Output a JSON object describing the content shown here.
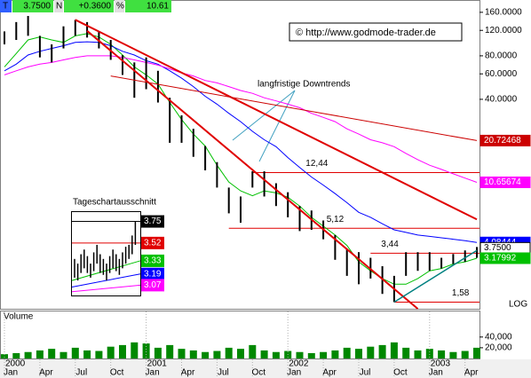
{
  "quote": {
    "symbol": "T",
    "n": "N",
    "change": "+0.3600",
    "pct_sign": "%",
    "pct": "10.61"
  },
  "copyright": "© http://www.godmode-trader.de",
  "chart_data": {
    "type": "ohlc",
    "log": true,
    "axis_note": "LOG",
    "annotation": "langfristige Downtrends",
    "x": [
      "2000-01",
      "2000-02",
      "2000-03",
      "2000-04",
      "2000-05",
      "2000-06",
      "2000-07",
      "2000-08",
      "2000-09",
      "2000-10",
      "2000-11",
      "2000-12",
      "2001-01",
      "2001-02",
      "2001-03",
      "2001-04",
      "2001-05",
      "2001-06",
      "2001-07",
      "2001-08",
      "2001-09",
      "2001-10",
      "2001-11",
      "2001-12",
      "2002-01",
      "2002-02",
      "2002-03",
      "2002-04",
      "2002-05",
      "2002-06",
      "2002-07",
      "2002-08",
      "2002-09",
      "2002-10",
      "2002-11",
      "2002-12",
      "2003-01",
      "2003-02",
      "2003-03",
      "2003-04",
      "2003-05"
    ],
    "high": [
      118,
      137,
      151,
      110,
      96,
      128,
      142,
      137,
      118,
      103,
      81,
      72,
      78,
      63,
      41,
      31,
      25,
      19,
      14.7,
      9.8,
      8.5,
      12.7,
      12.7,
      10.5,
      9.1,
      7.3,
      6.8,
      5.8,
      4.6,
      3.7,
      3.5,
      3.2,
      2.8,
      2.4,
      3.5,
      3.5,
      3.5,
      3.2,
      3.4,
      3.6,
      3.8
    ],
    "low": [
      96,
      103,
      110,
      78,
      72,
      90,
      110,
      107,
      90,
      75,
      59,
      41,
      47,
      38,
      20,
      20,
      16,
      12.9,
      9.8,
      6.5,
      5.6,
      9.8,
      8.5,
      7.3,
      6.1,
      4.9,
      5.0,
      4.3,
      3.1,
      2.4,
      2.1,
      2.3,
      1.8,
      1.58,
      2.4,
      2.6,
      2.6,
      2.7,
      2.9,
      3.0,
      3.2
    ],
    "bar_color": "#000000",
    "ylim": [
      1.42,
      184
    ],
    "yticks": [
      {
        "value": 160,
        "label": "160.0000"
      },
      {
        "value": 120,
        "label": "120.0000"
      },
      {
        "value": 80,
        "label": "80.0000"
      },
      {
        "value": 60,
        "label": "60.0000"
      },
      {
        "value": 40,
        "label": "40.0000"
      }
    ],
    "xticks": [
      {
        "value": "2000-01",
        "label": "Jan"
      },
      {
        "value": "2000-04",
        "label": "Apr"
      },
      {
        "value": "2000-07",
        "label": "Jul"
      },
      {
        "value": "2000-10",
        "label": "Oct"
      },
      {
        "value": "2001-01",
        "label": "Jan"
      },
      {
        "value": "2001-04",
        "label": "Apr"
      },
      {
        "value": "2001-07",
        "label": "Jul"
      },
      {
        "value": "2001-10",
        "label": "Oct"
      },
      {
        "value": "2002-01",
        "label": "Jan"
      },
      {
        "value": "2002-04",
        "label": "Apr"
      },
      {
        "value": "2002-07",
        "label": "Jul"
      },
      {
        "value": "2002-10",
        "label": "Oct"
      },
      {
        "value": "2003-01",
        "label": "Jan"
      },
      {
        "value": "2003-04",
        "label": "Apr"
      }
    ],
    "year_ticks": [
      {
        "value": "2000-01",
        "label": "2000"
      },
      {
        "value": "2001-01",
        "label": "2001"
      },
      {
        "value": "2002-01",
        "label": "2002"
      },
      {
        "value": "2003-01",
        "label": "2003"
      }
    ],
    "series": [
      {
        "color": "#00c000",
        "values": [
          67,
          83,
          103,
          108,
          103,
          99,
          110,
          114,
          108,
          96,
          81,
          67,
          59,
          51,
          38,
          29,
          23,
          19,
          14,
          10.7,
          9.3,
          8.6,
          9.3,
          9.0,
          8.4,
          7.3,
          6.1,
          5.3,
          4.6,
          3.9,
          3.0,
          2.6,
          2.3,
          2.1,
          2.1,
          2.3,
          2.6,
          2.7,
          2.9,
          3.0,
          3.17992
        ]
      },
      {
        "color": "#0000ff",
        "values": [
          63,
          70,
          81,
          86,
          90,
          94,
          99,
          100,
          99,
          94,
          86,
          81,
          74,
          70,
          63,
          56,
          49,
          42,
          37,
          32,
          28,
          24,
          21,
          18.8,
          15.8,
          13.5,
          11.6,
          10.2,
          8.9,
          7.7,
          6.6,
          6.1,
          5.5,
          5.0,
          4.8,
          4.6,
          4.5,
          4.4,
          4.3,
          4.2,
          4.08444
        ]
      },
      {
        "color": "#ff00ff",
        "values": [
          59,
          63,
          67,
          70,
          72,
          75,
          78,
          80,
          80,
          80,
          78,
          75,
          72,
          69,
          65,
          61,
          58,
          54,
          52,
          49,
          46,
          44,
          41,
          39,
          37,
          35,
          32,
          30,
          28,
          25,
          23,
          21,
          20,
          18.8,
          16.9,
          15.3,
          14.0,
          13.1,
          12.2,
          11.4,
          10.65674
        ]
      }
    ],
    "trendlines": [
      {
        "color": "#e00000",
        "width": 2,
        "x": [
          "2000-07",
          "2003-05"
        ],
        "values": [
          142,
          5.9
        ]
      },
      {
        "color": "#e00000",
        "width": 2,
        "x": [
          "2000-08",
          "2002-12"
        ],
        "values": [
          119,
          1.42
        ]
      },
      {
        "color": "#cc0000",
        "width": 1,
        "x": [
          "2000-10",
          "2003-05"
        ],
        "values": [
          58,
          20.72468
        ]
      },
      {
        "color": "#008080",
        "width": 1.5,
        "x": [
          "2002-10",
          "2003-05"
        ],
        "values": [
          1.58,
          3.6
        ]
      }
    ],
    "levels": [
      {
        "value": 12.44,
        "label": "12,44",
        "x": [
          "2001-10",
          "2003-05"
        ]
      },
      {
        "value": 5.12,
        "label": "5,12",
        "x": [
          "2001-08",
          "2003-05"
        ]
      },
      {
        "value": 3.44,
        "label": "3,44",
        "x": [
          "2002-08",
          "2003-05"
        ]
      },
      {
        "value": 1.58,
        "label": "1,58",
        "x": [
          "2002-10",
          "2003-05"
        ]
      }
    ],
    "last_price": {
      "value": 3.75,
      "label": "3.7500"
    },
    "volume": {
      "title": "Volume",
      "color": "#008800",
      "values": [
        8000,
        10000,
        12000,
        15000,
        18000,
        12000,
        20000,
        15000,
        14000,
        22000,
        25000,
        30000,
        28000,
        20000,
        25000,
        18000,
        15000,
        12000,
        14000,
        20000,
        18000,
        25000,
        15000,
        12000,
        14000,
        12000,
        10000,
        12000,
        15000,
        20000,
        18000,
        22000,
        25000,
        30000,
        20000,
        15000,
        18000,
        15000,
        12000,
        14000,
        20000
      ],
      "ylim": [
        0,
        86000
      ],
      "yticks": [
        {
          "value": 40000,
          "label": "40,000"
        },
        {
          "value": 20000,
          "label": "20,000"
        }
      ]
    },
    "inset": {
      "title": "Tageschartausschnitt",
      "ylim": [
        2.96,
        3.85
      ],
      "high": [
        3.35,
        3.3,
        3.4,
        3.45,
        3.38,
        3.3,
        3.42,
        3.5,
        3.4,
        3.35,
        3.3,
        3.38,
        3.45,
        3.4,
        3.35,
        3.42,
        3.48,
        3.5,
        3.6,
        3.75
      ],
      "low": [
        3.15,
        3.12,
        3.2,
        3.25,
        3.2,
        3.15,
        3.22,
        3.3,
        3.2,
        3.18,
        3.12,
        3.2,
        3.25,
        3.22,
        3.18,
        3.25,
        3.3,
        3.35,
        3.4,
        3.5
      ],
      "levels": [
        {
          "value": 3.75,
          "start": 3.75,
          "color": "#000000"
        },
        {
          "value": 3.52,
          "start": 3.52,
          "color": "#e00000"
        },
        {
          "value": 3.33,
          "start": 3.12,
          "color": "#00c000"
        },
        {
          "value": 3.19,
          "start": 3.05,
          "color": "#0000ff"
        },
        {
          "value": 3.07,
          "start": 3.0,
          "color": "#ff00ff"
        }
      ]
    }
  }
}
